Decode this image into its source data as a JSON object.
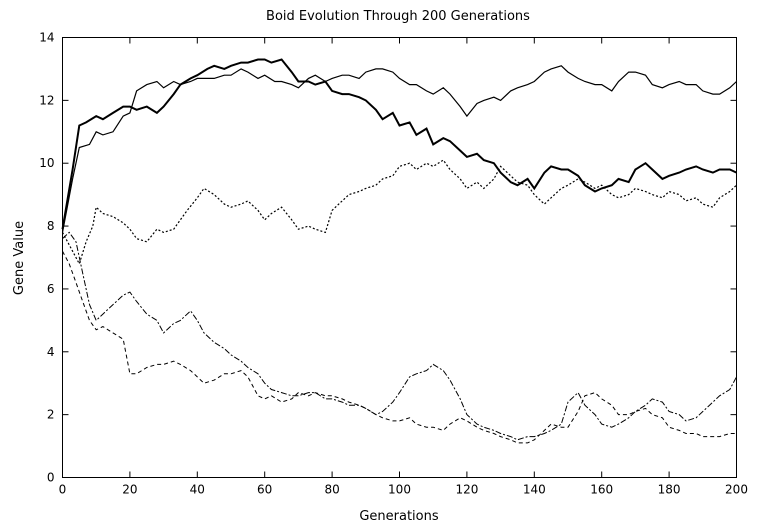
{
  "chart_data": {
    "type": "line",
    "title": "Boid Evolution Through 200 Generations",
    "xlabel": "Generations",
    "ylabel": "Gene Value",
    "xlim": [
      0,
      200
    ],
    "ylim": [
      0,
      14
    ],
    "xticks": [
      0,
      20,
      40,
      60,
      80,
      100,
      120,
      140,
      160,
      180,
      200
    ],
    "yticks": [
      0,
      2,
      4,
      6,
      8,
      10,
      12,
      14
    ],
    "grid": false,
    "legend": "none",
    "series": [
      {
        "style": "thin-solid",
        "x": [
          0,
          3,
          5,
          8,
          10,
          12,
          15,
          18,
          20,
          22,
          25,
          28,
          30,
          33,
          35,
          38,
          40,
          43,
          45,
          48,
          50,
          53,
          55,
          58,
          60,
          63,
          65,
          68,
          70,
          73,
          75,
          78,
          80,
          83,
          85,
          88,
          90,
          93,
          95,
          98,
          100,
          103,
          105,
          108,
          110,
          113,
          115,
          118,
          120,
          123,
          125,
          128,
          130,
          133,
          135,
          138,
          140,
          143,
          145,
          148,
          150,
          153,
          155,
          158,
          160,
          163,
          165,
          168,
          170,
          173,
          175,
          178,
          180,
          183,
          185,
          188,
          190,
          193,
          195,
          198,
          200
        ],
        "y": [
          7.8,
          9.5,
          10.5,
          10.6,
          11.0,
          10.9,
          11.0,
          11.5,
          11.6,
          12.3,
          12.5,
          12.6,
          12.4,
          12.6,
          12.5,
          12.6,
          12.7,
          12.7,
          12.7,
          12.8,
          12.8,
          13.0,
          12.9,
          12.7,
          12.8,
          12.6,
          12.6,
          12.5,
          12.4,
          12.7,
          12.8,
          12.6,
          12.7,
          12.8,
          12.8,
          12.7,
          12.9,
          13.0,
          13.0,
          12.9,
          12.7,
          12.5,
          12.5,
          12.3,
          12.2,
          12.4,
          12.2,
          11.8,
          11.5,
          11.9,
          12.0,
          12.1,
          12.0,
          12.3,
          12.4,
          12.5,
          12.6,
          12.9,
          13.0,
          13.1,
          12.9,
          12.7,
          12.6,
          12.5,
          12.5,
          12.3,
          12.6,
          12.9,
          12.9,
          12.8,
          12.5,
          12.4,
          12.5,
          12.6,
          12.5,
          12.5,
          12.3,
          12.2,
          12.2,
          12.4,
          12.6
        ]
      },
      {
        "style": "thick-solid",
        "x": [
          0,
          3,
          5,
          7,
          10,
          12,
          15,
          18,
          20,
          22,
          25,
          28,
          30,
          33,
          35,
          38,
          40,
          43,
          45,
          48,
          50,
          53,
          55,
          58,
          60,
          62,
          65,
          68,
          70,
          73,
          75,
          78,
          80,
          83,
          85,
          88,
          90,
          93,
          95,
          98,
          100,
          103,
          105,
          108,
          110,
          113,
          115,
          118,
          120,
          123,
          125,
          128,
          130,
          133,
          135,
          138,
          140,
          143,
          145,
          148,
          150,
          153,
          155,
          158,
          160,
          163,
          165,
          168,
          170,
          173,
          175,
          178,
          180,
          183,
          185,
          188,
          190,
          193,
          195,
          198,
          200
        ],
        "y": [
          7.9,
          9.8,
          11.2,
          11.3,
          11.5,
          11.4,
          11.6,
          11.8,
          11.8,
          11.7,
          11.8,
          11.6,
          11.8,
          12.2,
          12.5,
          12.7,
          12.8,
          13.0,
          13.1,
          13.0,
          13.1,
          13.2,
          13.2,
          13.3,
          13.3,
          13.2,
          13.3,
          12.9,
          12.6,
          12.6,
          12.5,
          12.6,
          12.3,
          12.2,
          12.2,
          12.1,
          12.0,
          11.7,
          11.4,
          11.6,
          11.2,
          11.3,
          10.9,
          11.1,
          10.6,
          10.8,
          10.7,
          10.4,
          10.2,
          10.3,
          10.1,
          10.0,
          9.7,
          9.4,
          9.3,
          9.5,
          9.2,
          9.7,
          9.9,
          9.8,
          9.8,
          9.6,
          9.3,
          9.1,
          9.2,
          9.3,
          9.5,
          9.4,
          9.8,
          10.0,
          9.8,
          9.5,
          9.6,
          9.7,
          9.8,
          9.9,
          9.8,
          9.7,
          9.8,
          9.8,
          9.7
        ]
      },
      {
        "style": "dotted",
        "x": [
          0,
          3,
          5,
          7,
          9,
          10,
          12,
          15,
          18,
          20,
          22,
          25,
          28,
          30,
          33,
          35,
          37,
          40,
          42,
          45,
          48,
          50,
          53,
          55,
          58,
          60,
          62,
          65,
          68,
          70,
          73,
          75,
          78,
          80,
          83,
          85,
          88,
          90,
          93,
          95,
          98,
          100,
          103,
          105,
          108,
          110,
          113,
          115,
          118,
          120,
          123,
          125,
          128,
          130,
          133,
          135,
          138,
          140,
          143,
          145,
          148,
          150,
          153,
          155,
          158,
          160,
          163,
          165,
          168,
          170,
          173,
          175,
          178,
          180,
          183,
          185,
          188,
          190,
          193,
          195,
          198,
          200
        ],
        "y": [
          7.8,
          7.2,
          6.8,
          7.5,
          8.0,
          8.6,
          8.4,
          8.3,
          8.1,
          7.9,
          7.6,
          7.5,
          7.9,
          7.8,
          7.9,
          8.2,
          8.5,
          8.9,
          9.2,
          9.0,
          8.7,
          8.6,
          8.7,
          8.8,
          8.5,
          8.2,
          8.4,
          8.6,
          8.2,
          7.9,
          8.0,
          7.9,
          7.8,
          8.5,
          8.8,
          9.0,
          9.1,
          9.2,
          9.3,
          9.5,
          9.6,
          9.9,
          10.0,
          9.8,
          10.0,
          9.9,
          10.1,
          9.8,
          9.5,
          9.2,
          9.4,
          9.2,
          9.5,
          9.9,
          9.6,
          9.4,
          9.3,
          9.0,
          8.7,
          8.9,
          9.2,
          9.3,
          9.5,
          9.4,
          9.2,
          9.3,
          9.0,
          8.9,
          9.0,
          9.2,
          9.1,
          9.0,
          8.9,
          9.1,
          9.0,
          8.8,
          8.9,
          8.7,
          8.6,
          8.9,
          9.1,
          9.3
        ]
      },
      {
        "style": "dash-dot",
        "x": [
          0,
          2,
          4,
          6,
          8,
          10,
          12,
          15,
          18,
          20,
          22,
          25,
          28,
          30,
          33,
          35,
          38,
          40,
          42,
          45,
          48,
          50,
          53,
          55,
          58,
          60,
          62,
          65,
          68,
          70,
          73,
          75,
          78,
          80,
          83,
          85,
          88,
          90,
          93,
          95,
          98,
          100,
          103,
          105,
          108,
          110,
          113,
          115,
          118,
          120,
          123,
          125,
          128,
          130,
          133,
          135,
          138,
          140,
          143,
          145,
          148,
          150,
          153,
          155,
          158,
          160,
          163,
          165,
          168,
          170,
          173,
          175,
          178,
          180,
          183,
          185,
          188,
          190,
          193,
          195,
          198,
          200
        ],
        "y": [
          7.6,
          7.8,
          7.5,
          6.5,
          5.5,
          5.0,
          5.2,
          5.5,
          5.8,
          5.9,
          5.6,
          5.2,
          5.0,
          4.6,
          4.9,
          5.0,
          5.3,
          5.0,
          4.6,
          4.3,
          4.1,
          3.9,
          3.7,
          3.5,
          3.3,
          3.0,
          2.8,
          2.7,
          2.6,
          2.6,
          2.7,
          2.7,
          2.5,
          2.5,
          2.4,
          2.3,
          2.3,
          2.2,
          2.0,
          2.1,
          2.4,
          2.7,
          3.2,
          3.3,
          3.4,
          3.6,
          3.4,
          3.1,
          2.5,
          2.0,
          1.7,
          1.6,
          1.5,
          1.4,
          1.3,
          1.2,
          1.3,
          1.3,
          1.4,
          1.5,
          1.7,
          2.4,
          2.7,
          2.3,
          2.0,
          1.7,
          1.6,
          1.7,
          1.9,
          2.1,
          2.3,
          2.5,
          2.4,
          2.1,
          2.0,
          1.8,
          1.9,
          2.1,
          2.4,
          2.6,
          2.8,
          3.2
        ]
      },
      {
        "style": "dashed",
        "x": [
          0,
          2,
          4,
          6,
          8,
          10,
          12,
          15,
          18,
          20,
          22,
          25,
          28,
          30,
          33,
          35,
          38,
          40,
          42,
          45,
          48,
          50,
          53,
          55,
          58,
          60,
          62,
          65,
          68,
          70,
          73,
          75,
          78,
          80,
          83,
          85,
          88,
          90,
          93,
          95,
          98,
          100,
          103,
          105,
          108,
          110,
          113,
          115,
          118,
          120,
          123,
          125,
          128,
          130,
          133,
          135,
          138,
          140,
          143,
          145,
          148,
          150,
          153,
          155,
          158,
          160,
          163,
          165,
          168,
          170,
          173,
          175,
          178,
          180,
          183,
          185,
          188,
          190,
          193,
          195,
          198,
          200
        ],
        "y": [
          7.2,
          6.8,
          6.2,
          5.6,
          5.0,
          4.7,
          4.8,
          4.6,
          4.4,
          3.3,
          3.3,
          3.5,
          3.6,
          3.6,
          3.7,
          3.6,
          3.4,
          3.2,
          3.0,
          3.1,
          3.3,
          3.3,
          3.4,
          3.2,
          2.6,
          2.5,
          2.6,
          2.4,
          2.5,
          2.7,
          2.6,
          2.7,
          2.6,
          2.6,
          2.5,
          2.4,
          2.3,
          2.2,
          2.0,
          1.9,
          1.8,
          1.8,
          1.9,
          1.7,
          1.6,
          1.6,
          1.5,
          1.7,
          1.9,
          1.8,
          1.6,
          1.5,
          1.4,
          1.3,
          1.2,
          1.1,
          1.1,
          1.2,
          1.5,
          1.7,
          1.6,
          1.6,
          2.1,
          2.6,
          2.7,
          2.5,
          2.3,
          2.0,
          2.0,
          2.1,
          2.2,
          2.0,
          1.9,
          1.6,
          1.5,
          1.4,
          1.4,
          1.3,
          1.3,
          1.3,
          1.4,
          1.4
        ]
      }
    ]
  }
}
